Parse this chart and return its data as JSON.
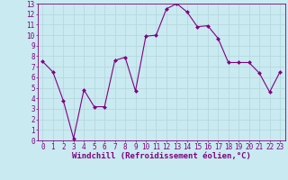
{
  "x": [
    0,
    1,
    2,
    3,
    4,
    5,
    6,
    7,
    8,
    9,
    10,
    11,
    12,
    13,
    14,
    15,
    16,
    17,
    18,
    19,
    20,
    21,
    22,
    23
  ],
  "y": [
    7.5,
    6.5,
    3.8,
    0.2,
    4.8,
    3.2,
    3.2,
    7.6,
    7.9,
    4.7,
    9.9,
    10.0,
    12.5,
    13.0,
    12.2,
    10.8,
    10.9,
    9.7,
    7.4,
    7.4,
    7.4,
    6.4,
    4.6,
    6.5
  ],
  "line_color": "#800080",
  "marker_color": "#800080",
  "bg_color": "#c8eaf0",
  "grid_color": "#b8d8e0",
  "xlabel": "Windchill (Refroidissement éolien,°C)",
  "ylabel": "",
  "xlim": [
    -0.5,
    23.5
  ],
  "ylim": [
    0,
    13
  ],
  "yticks": [
    0,
    1,
    2,
    3,
    4,
    5,
    6,
    7,
    8,
    9,
    10,
    11,
    12,
    13
  ],
  "xticks": [
    0,
    1,
    2,
    3,
    4,
    5,
    6,
    7,
    8,
    9,
    10,
    11,
    12,
    13,
    14,
    15,
    16,
    17,
    18,
    19,
    20,
    21,
    22,
    23
  ],
  "tick_color": "#800080",
  "axis_label_color": "#800080",
  "font_size_xlabel": 6.5,
  "font_size_ticks": 5.5,
  "spine_color": "#800080"
}
